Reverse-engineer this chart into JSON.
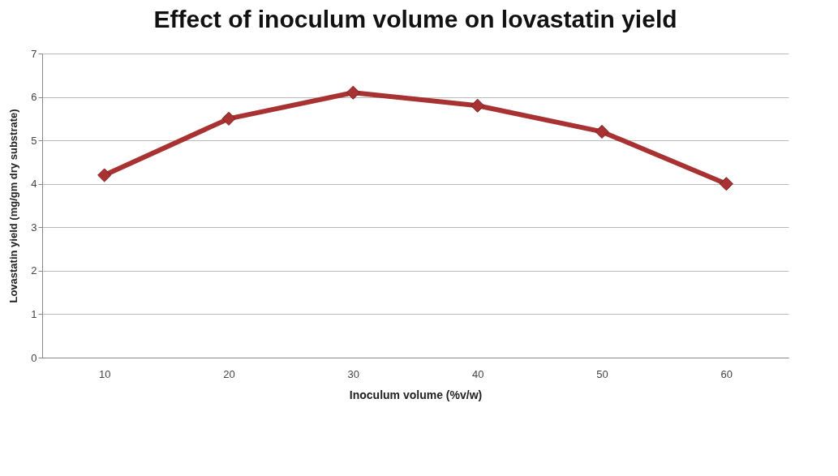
{
  "chart_data": {
    "type": "line",
    "title": "Effect of inoculum volume on lovastatin yield",
    "xlabel": "Inoculum volume (%v/w)",
    "ylabel": "Lovastatin yield (mg/gm dry substrate)",
    "categories": [
      "10",
      "20",
      "30",
      "40",
      "50",
      "60"
    ],
    "series": [
      {
        "color": "#a83232",
        "values": [
          4.2,
          5.5,
          6.1,
          5.8,
          5.2,
          4.0
        ]
      }
    ],
    "ylim": [
      0,
      7
    ],
    "yticks": [
      0,
      1,
      2,
      3,
      4,
      5,
      6,
      7
    ],
    "grid": "y",
    "marker": "diamond",
    "line_style": "solid"
  }
}
